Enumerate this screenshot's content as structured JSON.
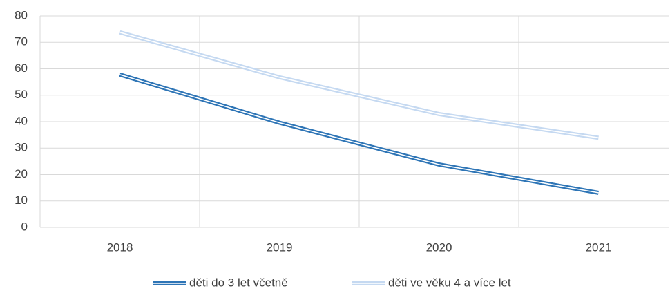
{
  "chart_data": {
    "type": "line",
    "categories": [
      "2018",
      "2019",
      "2020",
      "2021"
    ],
    "series": [
      {
        "name": "děti do 3 let včetně",
        "color": "#2e75b6",
        "values": [
          57.8,
          39.6,
          23.8,
          13.1
        ]
      },
      {
        "name": "děti ve věku 4 a více let",
        "color": "#c5d9f1",
        "values": [
          73.8,
          56.8,
          42.9,
          33.9
        ]
      }
    ],
    "ylim": [
      0,
      80
    ],
    "yticks": [
      0,
      10,
      20,
      30,
      40,
      50,
      60,
      70,
      80
    ],
    "grid": true,
    "legend": "bottom"
  }
}
